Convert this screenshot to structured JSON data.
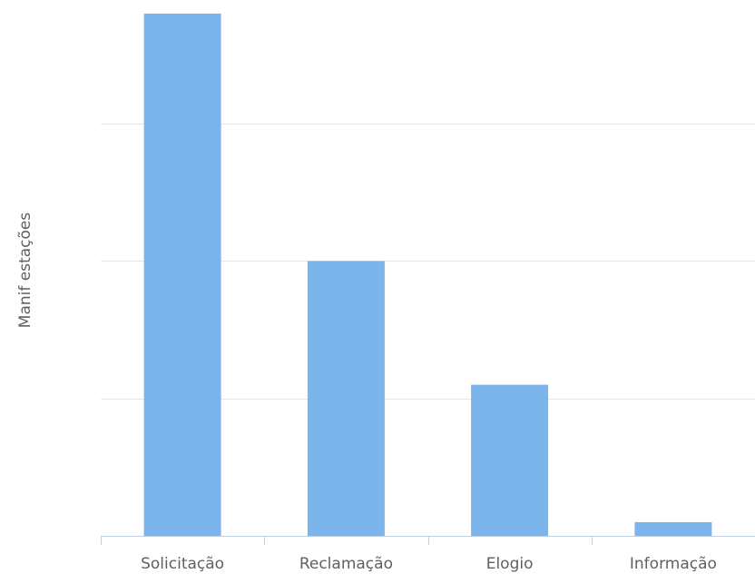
{
  "chart_data": {
    "type": "bar",
    "title": "",
    "xlabel": "",
    "ylabel": "Manif estações",
    "categories": [
      "Solicitação",
      "Reclamação",
      "Elogio",
      "Informação"
    ],
    "series": [
      {
        "values": [
          3.8,
          2.0,
          1.1,
          0.1
        ]
      }
    ],
    "ylim": [
      0,
      3.8
    ],
    "yticks": [
      0,
      1,
      2,
      3
    ],
    "ytick_labels_visible": false,
    "grid": true,
    "legend": "none",
    "colors": {
      "bar": "#7cb5ec",
      "grid": "#e6e6e6",
      "axis": "#c0d0e0",
      "text": "#606060"
    }
  }
}
